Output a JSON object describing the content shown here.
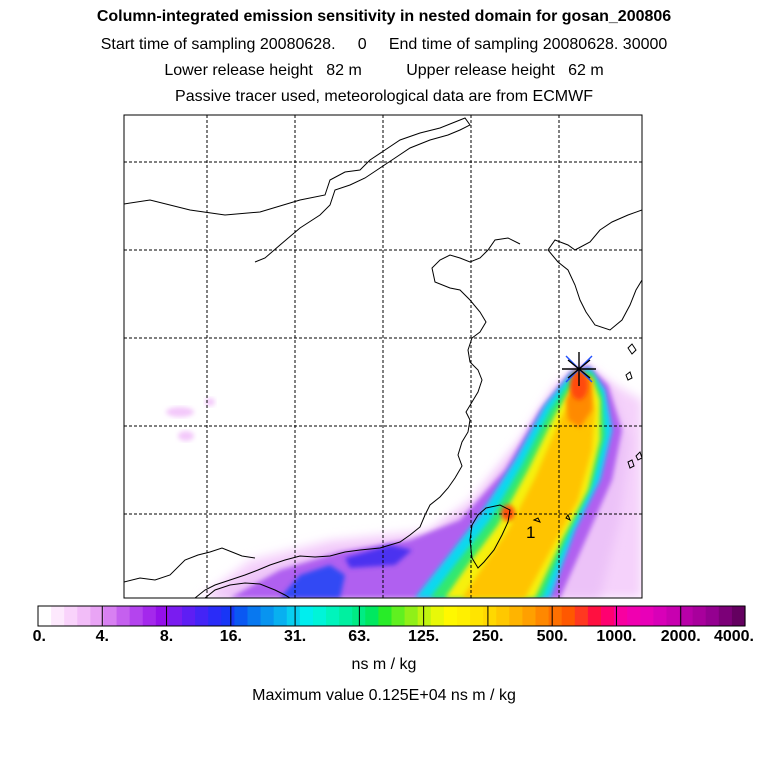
{
  "header": {
    "title": "Column-integrated emission sensitivity in nested domain for gosan_200806",
    "line2": "Start time of sampling 20080628.     0     End time of sampling 20080628. 30000",
    "line3": "Lower release height   82 m          Upper release height   62 m",
    "line4": "Passive tracer used, meteorological data are from ECMWF"
  },
  "map": {
    "receptor_marker": "asterisk-marker",
    "cluster_label": "1"
  },
  "colorbar": {
    "ticks": [
      "0.",
      "4.",
      "8.",
      "16.",
      "31.",
      "63.",
      "125.",
      "250.",
      "500.",
      "1000.",
      "2000.",
      "4000."
    ],
    "colors": [
      "#ffffff",
      "#fde9fd",
      "#f9d3fb",
      "#f2bdf8",
      "#e9a4f5",
      "#d880f2",
      "#c560ef",
      "#b444ee",
      "#a428ec",
      "#9410ea",
      "#7a1cf0",
      "#5e1ef4",
      "#4424f6",
      "#2a2cf8",
      "#1836f6",
      "#0a58f2",
      "#0878f0",
      "#0894f0",
      "#08b0f0",
      "#08cef0",
      "#00eeee",
      "#00f4d8",
      "#00f4bc",
      "#00f0a0",
      "#00ec84",
      "#00e860",
      "#28ec28",
      "#60f020",
      "#90f018",
      "#c0f410",
      "#e8f808",
      "#fff800",
      "#fff000",
      "#ffe400",
      "#ffd800",
      "#ffc800",
      "#ffb400",
      "#ffa000",
      "#ff8800",
      "#ff7000",
      "#ff5800",
      "#ff3820",
      "#ff1040",
      "#ff0070",
      "#f800a0",
      "#f000b0",
      "#e800b8",
      "#d800b8",
      "#c800b0",
      "#b800a8",
      "#a8009c",
      "#940090",
      "#7c0078",
      "#640060"
    ],
    "unit": "ns m / kg",
    "max_label": "Maximum value  0.125E+04 ns m / kg"
  }
}
